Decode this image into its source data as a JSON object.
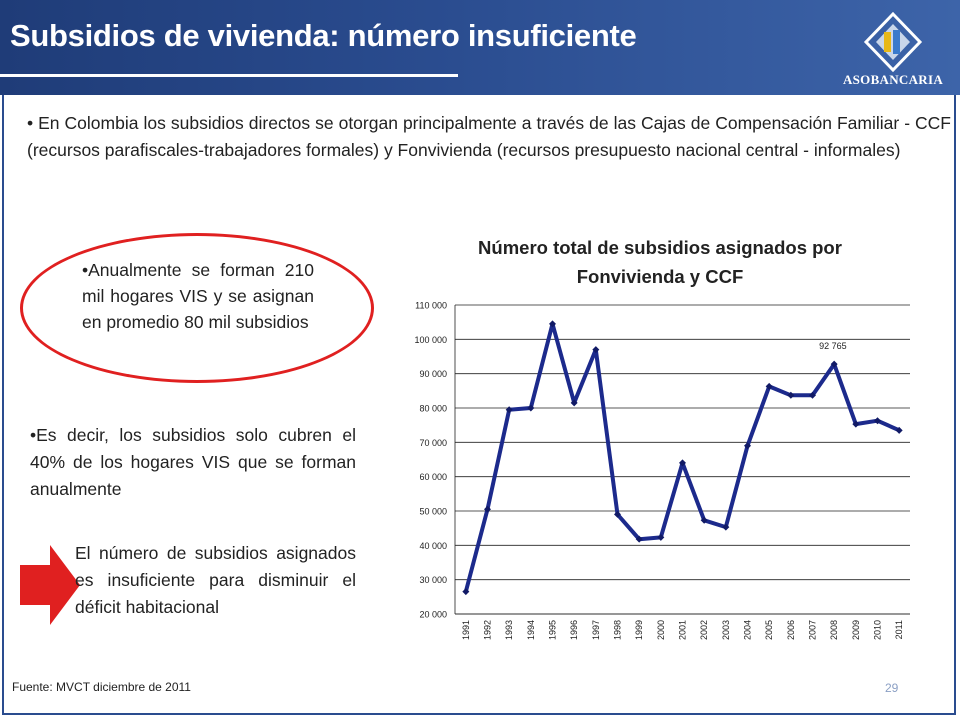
{
  "slide": {
    "title": "Subsidios de vivienda: número insuficiente",
    "logo_text": "ASOBANCARIA",
    "paragraph": "• En Colombia los subsidios directos se otorgan principalmente a través de las Cajas de Compensación Familiar - CCF (recursos parafiscales-trabajadores formales)  y Fonvivienda (recursos presupuesto nacional central - informales)",
    "point1": "•Anualmente se forman 210 mil hogares VIS y se asignan en promedio 80 mil subsidios",
    "point2": "•Es decir, los subsidios solo cubren el 40% de los hogares VIS que se forman anualmente",
    "point3": "El número de subsidios asignados es insuficiente para disminuir el déficit habitacional",
    "source": "Fuente: MVCT diciembre de 2011",
    "page_number": "29"
  },
  "colors": {
    "header": "#2a4c8f",
    "series_line": "#1c2a8c",
    "oval": "#e02020",
    "arrow": "#e02020"
  },
  "chart_data": {
    "type": "line",
    "title": "Número  total de subsidios asignados por Fonvivienda y CCF",
    "x": [
      "1991",
      "1992",
      "1993",
      "1994",
      "1995",
      "1996",
      "1997",
      "1998",
      "1999",
      "2000",
      "2001",
      "2002",
      "2003",
      "2004",
      "2005",
      "2006",
      "2007",
      "2008",
      "2009",
      "2010",
      "2011"
    ],
    "series": [
      {
        "values": [
          26500,
          50500,
          79500,
          80000,
          104500,
          81500,
          97000,
          49000,
          41800,
          42300,
          64000,
          47300,
          45300,
          69000,
          86300,
          83700,
          83700,
          92765,
          75300,
          76300,
          73500
        ]
      }
    ],
    "ylim": [
      20000,
      110000
    ],
    "yticks": [
      20000,
      30000,
      40000,
      50000,
      60000,
      70000,
      80000,
      90000,
      100000,
      110000
    ],
    "ytick_labels": [
      "20 000",
      "30 000",
      "40 000",
      "50 000",
      "60 000",
      "70 000",
      "80 000",
      "90 000",
      "100 000",
      "110 000"
    ],
    "grid": true,
    "annotations": [
      {
        "x": "2008",
        "text": "92 765"
      }
    ]
  }
}
